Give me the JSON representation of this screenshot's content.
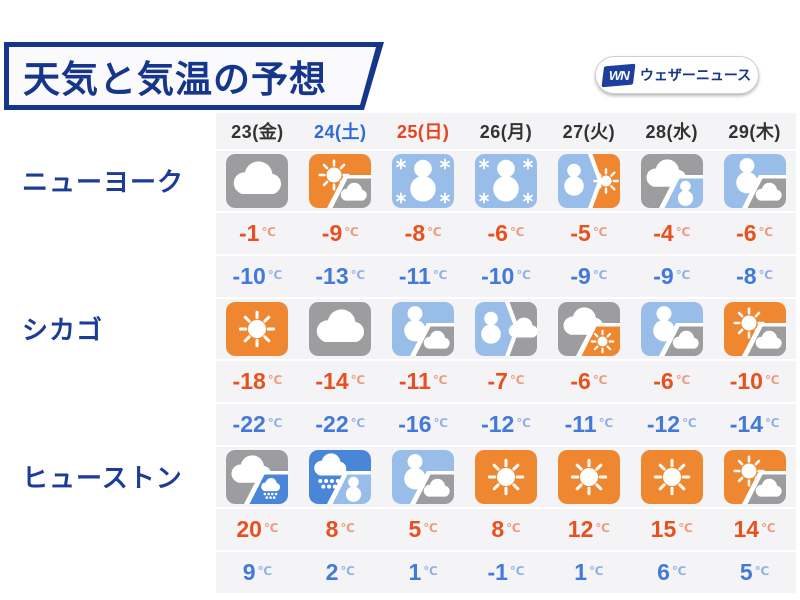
{
  "header": {
    "title": "天気と気温の予想",
    "logo": {
      "mark": "WN",
      "text": "ウェザーニュース"
    }
  },
  "dates": [
    {
      "label": "23(金)",
      "color": "#333333"
    },
    {
      "label": "24(土)",
      "color": "#2e6bd8"
    },
    {
      "label": "25(日)",
      "color": "#e8431f"
    },
    {
      "label": "26(月)",
      "color": "#333333"
    },
    {
      "label": "27(火)",
      "color": "#333333"
    },
    {
      "label": "28(水)",
      "color": "#333333"
    },
    {
      "label": "29(木)",
      "color": "#333333"
    }
  ],
  "unit": "℃",
  "colors": {
    "navy": "#16368c",
    "sunny_orange": "#ef8630",
    "cloud_gray": "#9d9da0",
    "snow_blue": "#97bde8",
    "rain_blue": "#4a86d8",
    "high_temp": "#e8511f",
    "low_temp": "#4379d8"
  },
  "cities": [
    {
      "name": "ニューヨーク",
      "icons": [
        "cloudy",
        "sunny-then-cloudy",
        "snow",
        "snow",
        "snow-then-sunny",
        "cloudy-then-snow",
        "snow-then-cloudy"
      ],
      "highs": [
        -1,
        -9,
        -8,
        -6,
        -5,
        -4,
        -6
      ],
      "lows": [
        -10,
        -13,
        -11,
        -10,
        -9,
        -9,
        -8
      ]
    },
    {
      "name": "シカゴ",
      "icons": [
        "sunny",
        "cloudy",
        "snow-then-cloudy",
        "snow-then-cloudy-split",
        "cloudy-then-sunny",
        "snow-then-cloudy",
        "sunny-then-cloudy"
      ],
      "highs": [
        -18,
        -14,
        -11,
        -7,
        -6,
        -6,
        -10
      ],
      "lows": [
        -22,
        -22,
        -16,
        -12,
        -11,
        -12,
        -14
      ]
    },
    {
      "name": "ヒューストン",
      "icons": [
        "cloudy-then-rain",
        "rain-then-snow",
        "snow-then-cloudy",
        "sunny",
        "sunny",
        "sunny",
        "sunny-then-cloudy"
      ],
      "highs": [
        20,
        8,
        5,
        8,
        12,
        15,
        14
      ],
      "lows": [
        9,
        2,
        1,
        -1,
        1,
        6,
        5
      ]
    }
  ]
}
